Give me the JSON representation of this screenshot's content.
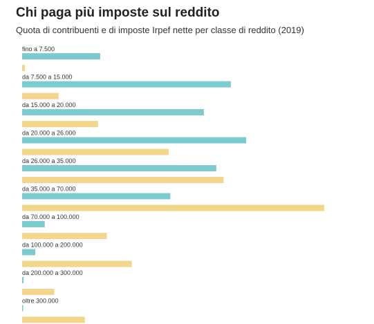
{
  "chart_data": {
    "type": "bar",
    "orientation": "horizontal",
    "title": "Chi paga più imposte sul reddito",
    "subtitle": "Quota di contribuenti e di imposte Irpef nette per classe di reddito (2019)",
    "categories": [
      "fino a 7.500",
      "da 7.500 a 15.000",
      "da 15.000 a 20.000",
      "da 20.000 a 26.000",
      "da 26.000 a 35.000",
      "da 35.000 a 70.000",
      "da 70.000 a 100.000",
      "da 100.000 a 200.000",
      "da 200.000 a 300.000",
      "oltre 300.000"
    ],
    "series": [
      {
        "color": "#7ccbd1",
        "values": [
          10.7,
          28.6,
          24.9,
          30.7,
          26.6,
          20.3,
          3.1,
          1.8,
          0.2,
          0.1
        ]
      },
      {
        "color": "#f3d68a",
        "values": [
          0.4,
          5.0,
          10.4,
          20.1,
          27.6,
          41.4,
          11.6,
          15.0,
          4.4,
          8.6
        ]
      }
    ],
    "xlim": [
      0,
      43
    ],
    "grid": false,
    "legend": "none"
  }
}
